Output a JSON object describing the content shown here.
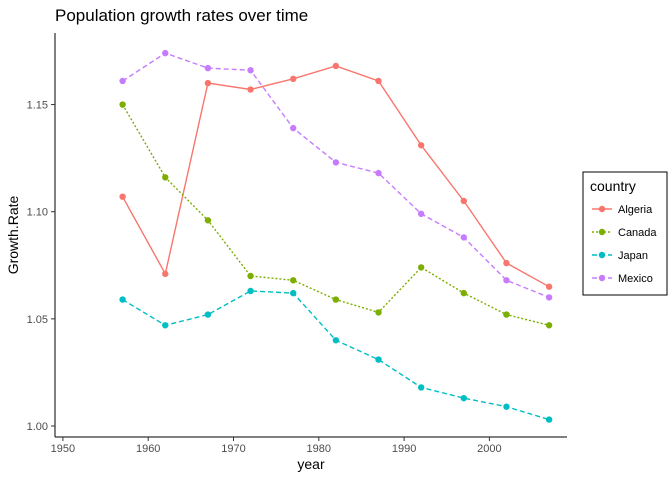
{
  "chart_data": {
    "type": "line",
    "title": "Population growth rates over time",
    "xlabel": "year",
    "ylabel": "Growth.Rate",
    "xlim": [
      1950,
      2007
    ],
    "ylim": [
      1.0,
      1.18
    ],
    "x_ticks": [
      1950,
      1960,
      1970,
      1980,
      1990,
      2000
    ],
    "x_tick_labels": [
      "1950",
      "1960",
      "1970",
      "1980",
      "1990",
      "2000"
    ],
    "y_ticks": [
      1.0,
      1.05,
      1.1,
      1.15
    ],
    "y_tick_labels": [
      "1.00",
      "1.05",
      "1.10",
      "1.15"
    ],
    "grid": false,
    "legend": {
      "title": "country",
      "position": "right"
    },
    "x": [
      1957,
      1962,
      1967,
      1972,
      1977,
      1982,
      1987,
      1992,
      1997,
      2002,
      2007
    ],
    "series": [
      {
        "name": "Algeria",
        "color": "#F8766D",
        "dash": "solid",
        "values": [
          1.107,
          1.071,
          1.16,
          1.157,
          1.162,
          1.168,
          1.161,
          1.131,
          1.105,
          1.076,
          1.065
        ]
      },
      {
        "name": "Canada",
        "color": "#7CAE00",
        "dash": "dotted",
        "values": [
          1.15,
          1.116,
          1.096,
          1.07,
          1.068,
          1.059,
          1.053,
          1.074,
          1.062,
          1.052,
          1.047
        ]
      },
      {
        "name": "Japan",
        "color": "#00BFC4",
        "dash": "dashed",
        "values": [
          1.059,
          1.047,
          1.052,
          1.063,
          1.062,
          1.04,
          1.031,
          1.018,
          1.013,
          1.009,
          1.003
        ]
      },
      {
        "name": "Mexico",
        "color": "#C77CFF",
        "dash": "dashed",
        "values": [
          1.161,
          1.174,
          1.167,
          1.166,
          1.139,
          1.123,
          1.118,
          1.099,
          1.088,
          1.068,
          1.06
        ]
      }
    ]
  }
}
